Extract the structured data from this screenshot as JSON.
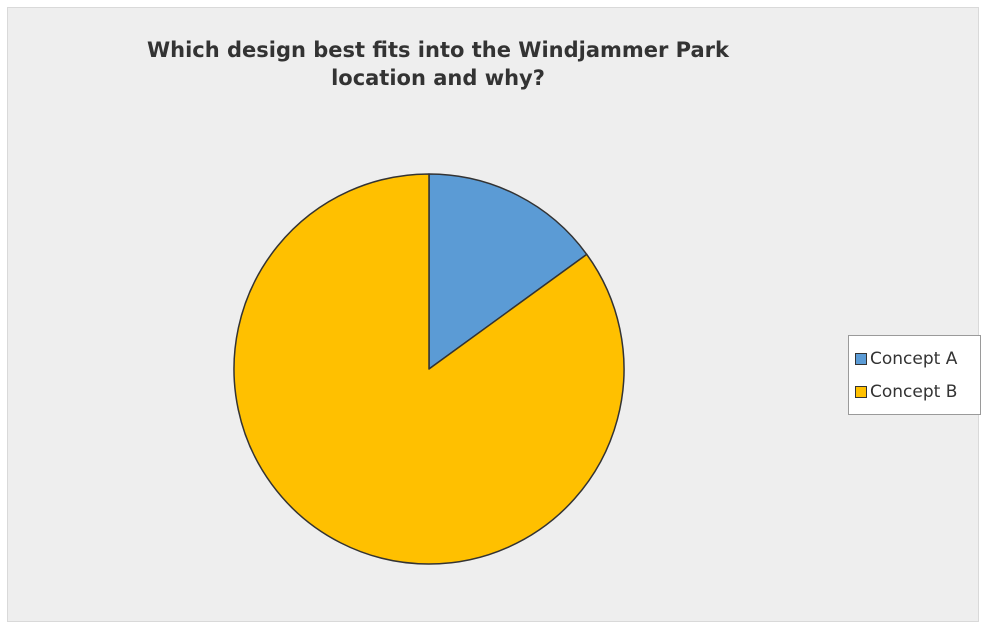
{
  "chart_data": {
    "type": "pie",
    "title": "Which design best fits into the Windjammer Park location and why?",
    "categories": [
      "Concept A",
      "Concept B"
    ],
    "values": [
      15,
      85
    ],
    "colors": [
      "#5b9bd5",
      "#ffc000"
    ],
    "start_angle": "12 o'clock, clockwise",
    "legend_position": "right"
  }
}
